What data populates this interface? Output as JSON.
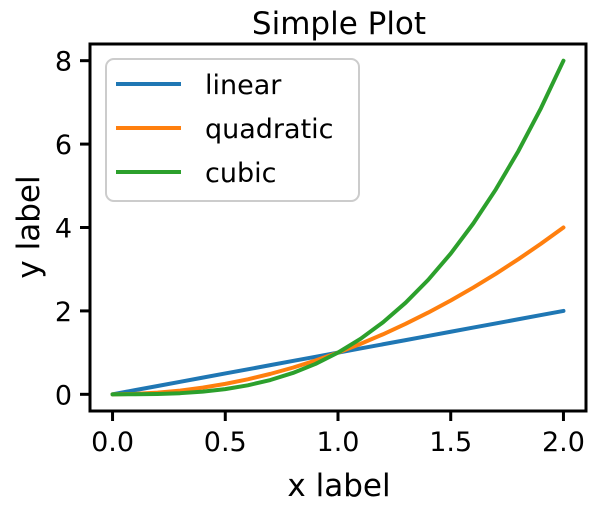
{
  "chart_data": {
    "type": "line",
    "title": "Simple Plot",
    "xlabel": "x label",
    "ylabel": "y label",
    "xlim": [
      -0.1,
      2.1
    ],
    "ylim": [
      -0.4,
      8.4
    ],
    "x_ticks": [
      0.0,
      0.5,
      1.0,
      1.5,
      2.0
    ],
    "x_tick_labels": [
      "0.0",
      "0.5",
      "1.0",
      "1.5",
      "2.0"
    ],
    "y_ticks": [
      0,
      2,
      4,
      6,
      8
    ],
    "y_tick_labels": [
      "0",
      "2",
      "4",
      "6",
      "8"
    ],
    "grid": false,
    "legend_position": "upper-left",
    "x": [
      0.0,
      0.1,
      0.2,
      0.3,
      0.4,
      0.5,
      0.6,
      0.7,
      0.8,
      0.9,
      1.0,
      1.1,
      1.2,
      1.3,
      1.4,
      1.5,
      1.6,
      1.7,
      1.8,
      1.9,
      2.0
    ],
    "series": [
      {
        "name": "linear",
        "color": "#1f77b4",
        "values": [
          0.0,
          0.1,
          0.2,
          0.3,
          0.4,
          0.5,
          0.6,
          0.7,
          0.8,
          0.9,
          1.0,
          1.1,
          1.2,
          1.3,
          1.4,
          1.5,
          1.6,
          1.7,
          1.8,
          1.9,
          2.0
        ]
      },
      {
        "name": "quadratic",
        "color": "#ff7f0e",
        "values": [
          0.0,
          0.01,
          0.04,
          0.09,
          0.16,
          0.25,
          0.36,
          0.49,
          0.64,
          0.81,
          1.0,
          1.21,
          1.44,
          1.69,
          1.96,
          2.25,
          2.56,
          2.89,
          3.24,
          3.61,
          4.0
        ]
      },
      {
        "name": "cubic",
        "color": "#2ca02c",
        "values": [
          0.0,
          0.001,
          0.008,
          0.027,
          0.064,
          0.125,
          0.216,
          0.343,
          0.512,
          0.729,
          1.0,
          1.331,
          1.728,
          2.197,
          2.744,
          3.375,
          4.096,
          4.913,
          5.832,
          6.859,
          8.0
        ]
      }
    ]
  }
}
